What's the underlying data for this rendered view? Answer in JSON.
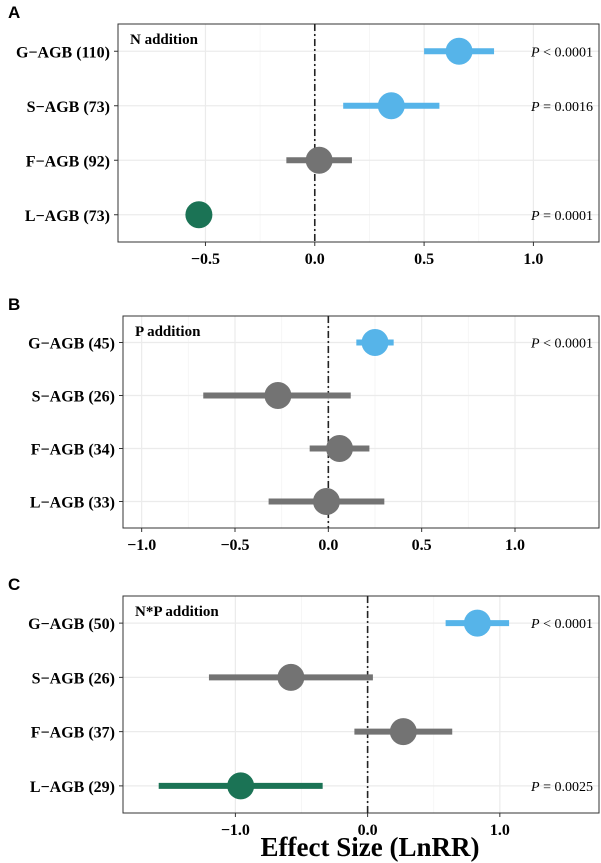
{
  "xlabel": "Effect Size (LnRR)",
  "colors": {
    "positive": "#56B4E9",
    "neutral": "#737373",
    "negative": "#1B7355",
    "grid": "#ebebeb",
    "axis": "#000000"
  },
  "chart_data": [
    {
      "type": "scatter",
      "panel_label": "A",
      "title": "N addition",
      "xlim": [
        -0.9,
        1.3
      ],
      "xticks": [
        -0.5,
        0.0,
        0.5,
        1.0
      ],
      "xtick_labels": [
        "−0.5",
        "0.0",
        "0.5",
        "1.0"
      ],
      "reference_line": 0,
      "grid": true,
      "rows": [
        {
          "label": "G−AGB (110)",
          "estimate": 0.66,
          "ci": [
            0.5,
            0.82
          ],
          "class": "positive",
          "p_italic": "P",
          "p_rest": " < 0.0001"
        },
        {
          "label": "S−AGB (73)",
          "estimate": 0.35,
          "ci": [
            0.13,
            0.57
          ],
          "class": "positive",
          "p_italic": "P",
          "p_rest": " = 0.0016"
        },
        {
          "label": "F−AGB (92)",
          "estimate": 0.02,
          "ci": [
            -0.13,
            0.17
          ],
          "class": "neutral",
          "p_italic": "",
          "p_rest": ""
        },
        {
          "label": "L−AGB (73)",
          "estimate": -0.53,
          "ci": [
            -0.53,
            -0.53
          ],
          "class": "negative",
          "p_italic": "P",
          "p_rest": " = 0.0001"
        }
      ]
    },
    {
      "type": "scatter",
      "panel_label": "B",
      "title": "P addition",
      "xlim": [
        -1.1,
        1.45
      ],
      "xticks": [
        -1.0,
        -0.5,
        0.0,
        0.5,
        1.0
      ],
      "xtick_labels": [
        "−1.0",
        "−0.5",
        "0.0",
        "0.5",
        "1.0"
      ],
      "reference_line": 0,
      "grid": true,
      "rows": [
        {
          "label": "G−AGB (45)",
          "estimate": 0.25,
          "ci": [
            0.15,
            0.35
          ],
          "class": "positive",
          "p_italic": "P",
          "p_rest": " < 0.0001"
        },
        {
          "label": "S−AGB (26)",
          "estimate": -0.27,
          "ci": [
            -0.67,
            0.12
          ],
          "class": "neutral",
          "p_italic": "",
          "p_rest": ""
        },
        {
          "label": "F−AGB (34)",
          "estimate": 0.06,
          "ci": [
            -0.1,
            0.22
          ],
          "class": "neutral",
          "p_italic": "",
          "p_rest": ""
        },
        {
          "label": "L−AGB (33)",
          "estimate": -0.01,
          "ci": [
            -0.32,
            0.3
          ],
          "class": "neutral",
          "p_italic": "",
          "p_rest": ""
        }
      ]
    },
    {
      "type": "scatter",
      "panel_label": "C",
      "title": "N*P addition",
      "xlim": [
        -1.85,
        1.75
      ],
      "xticks": [
        -1.0,
        0.0,
        1.0
      ],
      "xtick_labels": [
        "−1.0",
        "0.0",
        "1.0"
      ],
      "reference_line": 0,
      "grid": true,
      "rows": [
        {
          "label": "G−AGB (50)",
          "estimate": 0.83,
          "ci": [
            0.59,
            1.07
          ],
          "class": "positive",
          "p_italic": "P",
          "p_rest": " < 0.0001"
        },
        {
          "label": "S−AGB (26)",
          "estimate": -0.58,
          "ci": [
            -1.2,
            0.04
          ],
          "class": "neutral",
          "p_italic": "",
          "p_rest": ""
        },
        {
          "label": "F−AGB (37)",
          "estimate": 0.27,
          "ci": [
            -0.1,
            0.64
          ],
          "class": "neutral",
          "p_italic": "",
          "p_rest": ""
        },
        {
          "label": "L−AGB (29)",
          "estimate": -0.96,
          "ci": [
            -1.58,
            -0.34
          ],
          "class": "negative",
          "p_italic": "P",
          "p_rest": " = 0.0025"
        }
      ]
    }
  ]
}
